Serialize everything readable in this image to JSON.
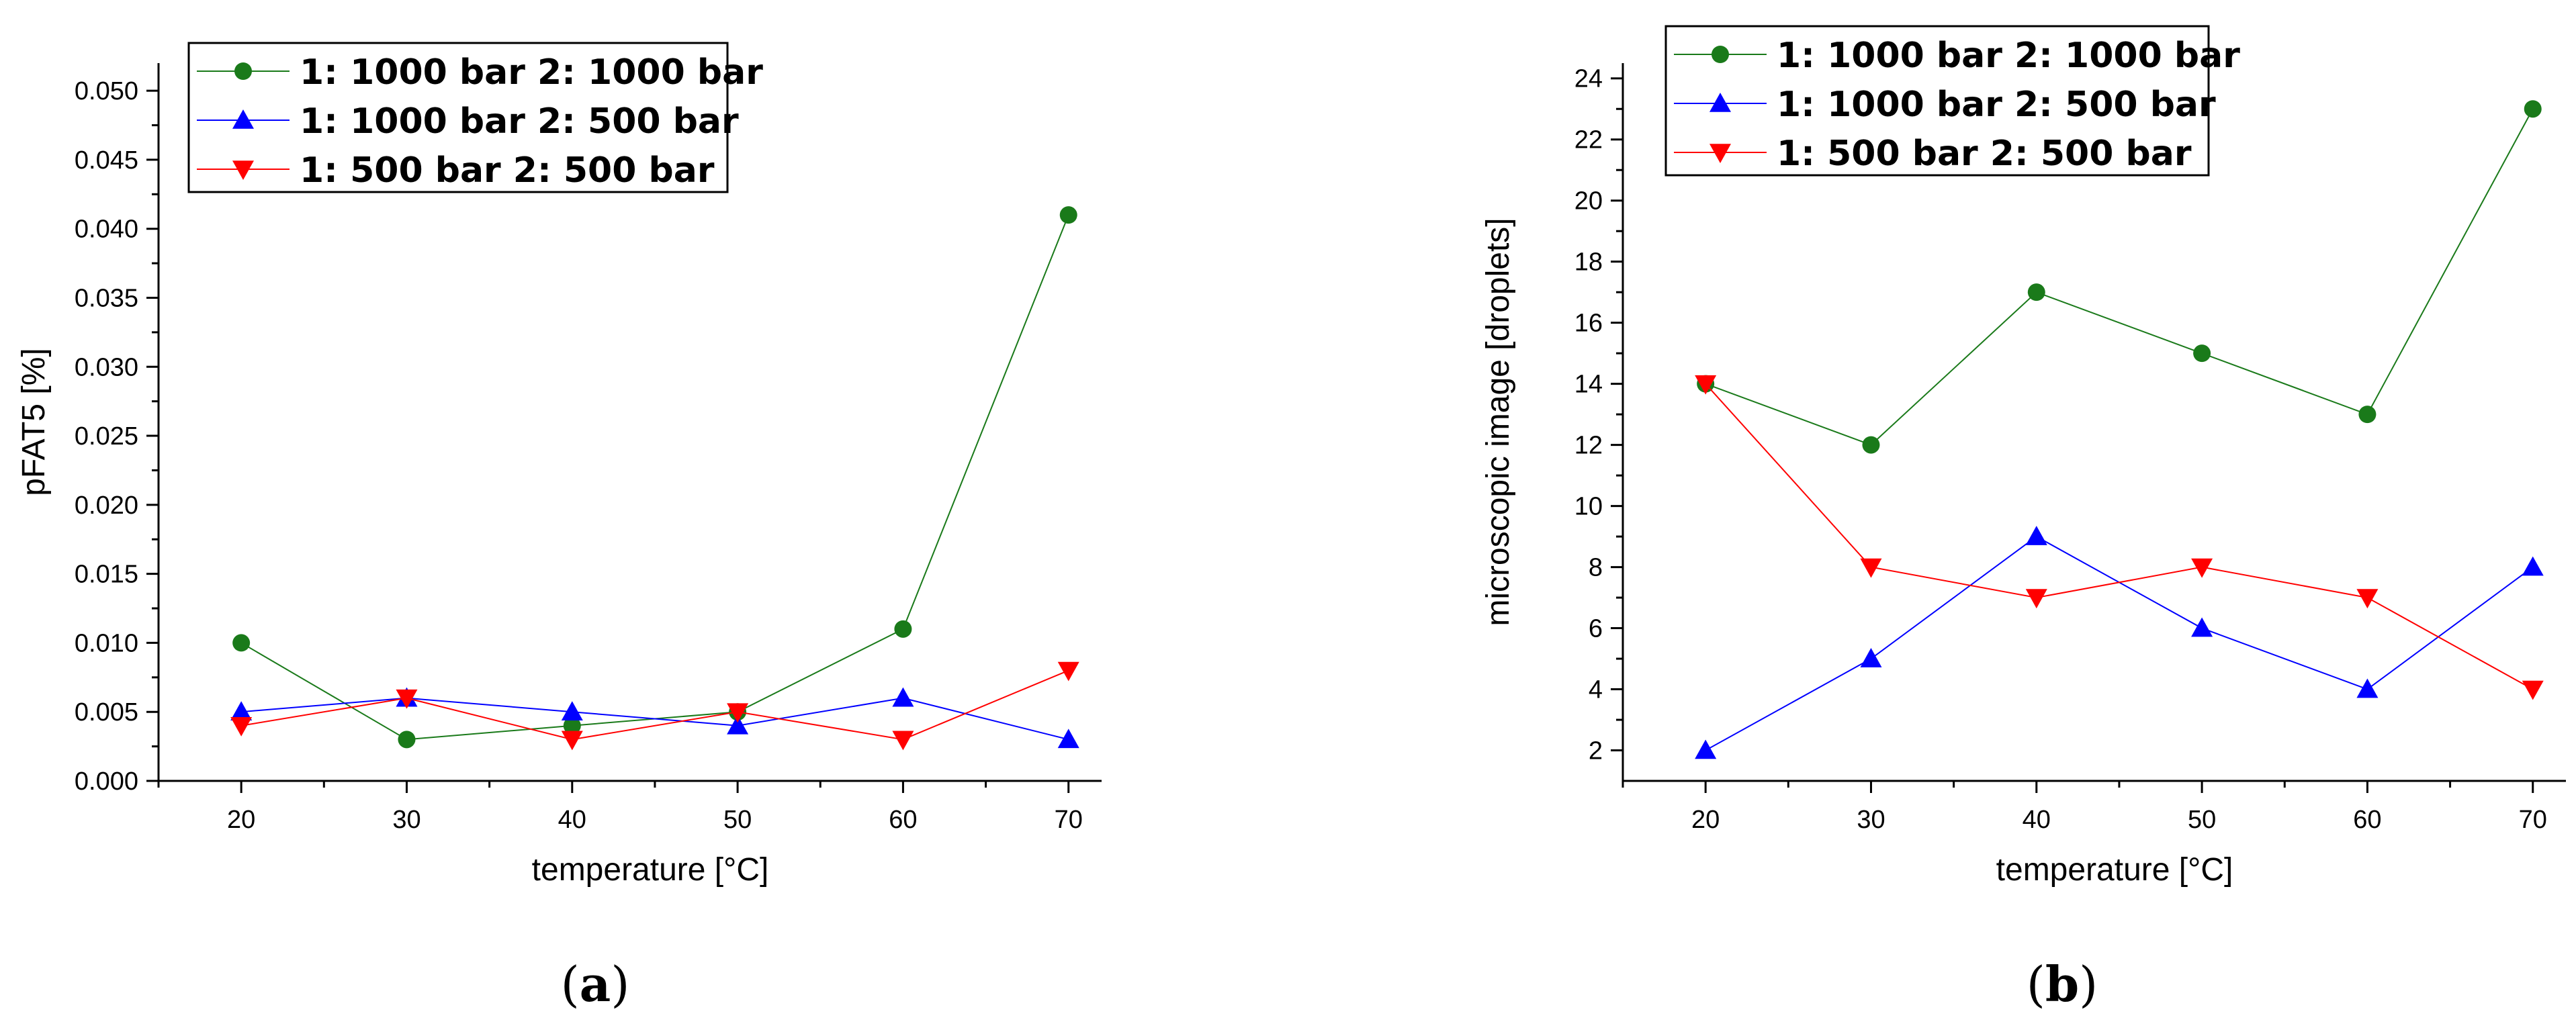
{
  "chart_data": [
    {
      "type": "line",
      "panel_label": "a",
      "xlabel": "temperature [°C]",
      "ylabel": "pFAT5 [%]",
      "xlim": [
        15,
        72
      ],
      "ylim": [
        0,
        0.052
      ],
      "x_ticks": [
        20,
        30,
        40,
        50,
        60,
        70
      ],
      "y_ticks": [
        0.0,
        0.005,
        0.01,
        0.015,
        0.02,
        0.025,
        0.03,
        0.035,
        0.04,
        0.045,
        0.05
      ],
      "y_tick_labels": [
        "0.000",
        "0.005",
        "0.010",
        "0.015",
        "0.020",
        "0.025",
        "0.030",
        "0.035",
        "0.040",
        "0.045",
        "0.050"
      ],
      "x": [
        20,
        30,
        40,
        50,
        60,
        70
      ],
      "series": [
        {
          "name": "1: 1000 bar 2: 1000 bar",
          "color": "#1a7a1a",
          "marker": "circle",
          "values": [
            0.01,
            0.003,
            0.004,
            0.005,
            0.011,
            0.041
          ]
        },
        {
          "name": "1: 1000 bar 2: 500 bar",
          "color": "#0000ff",
          "marker": "triangle-up",
          "values": [
            0.005,
            0.006,
            0.005,
            0.004,
            0.006,
            0.003
          ]
        },
        {
          "name": "1: 500 bar 2: 500 bar",
          "color": "#ff0000",
          "marker": "triangle-down",
          "values": [
            0.004,
            0.006,
            0.003,
            0.005,
            0.003,
            0.008
          ]
        }
      ],
      "legend_position": "top-left"
    },
    {
      "type": "line",
      "panel_label": "b",
      "xlabel": "temperature [°C]",
      "ylabel": "microscopic image [droplets]",
      "xlim": [
        15,
        72
      ],
      "ylim": [
        1,
        24.5
      ],
      "x_ticks": [
        20,
        30,
        40,
        50,
        60,
        70
      ],
      "y_ticks": [
        2,
        4,
        6,
        8,
        10,
        12,
        14,
        16,
        18,
        20,
        22,
        24
      ],
      "y_tick_labels": [
        "2",
        "4",
        "6",
        "8",
        "10",
        "12",
        "14",
        "16",
        "18",
        "20",
        "22",
        "24"
      ],
      "x": [
        20,
        30,
        40,
        50,
        60,
        70
      ],
      "series": [
        {
          "name": "1: 1000 bar 2: 1000 bar",
          "color": "#1a7a1a",
          "marker": "circle",
          "values": [
            14,
            12,
            17,
            15,
            13,
            23
          ]
        },
        {
          "name": "1: 1000 bar 2: 500 bar",
          "color": "#0000ff",
          "marker": "triangle-up",
          "values": [
            2,
            5,
            9,
            6,
            4,
            8
          ]
        },
        {
          "name": "1: 500 bar 2: 500 bar",
          "color": "#ff0000",
          "marker": "triangle-down",
          "values": [
            14,
            8,
            7,
            8,
            7,
            4
          ]
        }
      ],
      "legend_position": "top-left"
    }
  ]
}
